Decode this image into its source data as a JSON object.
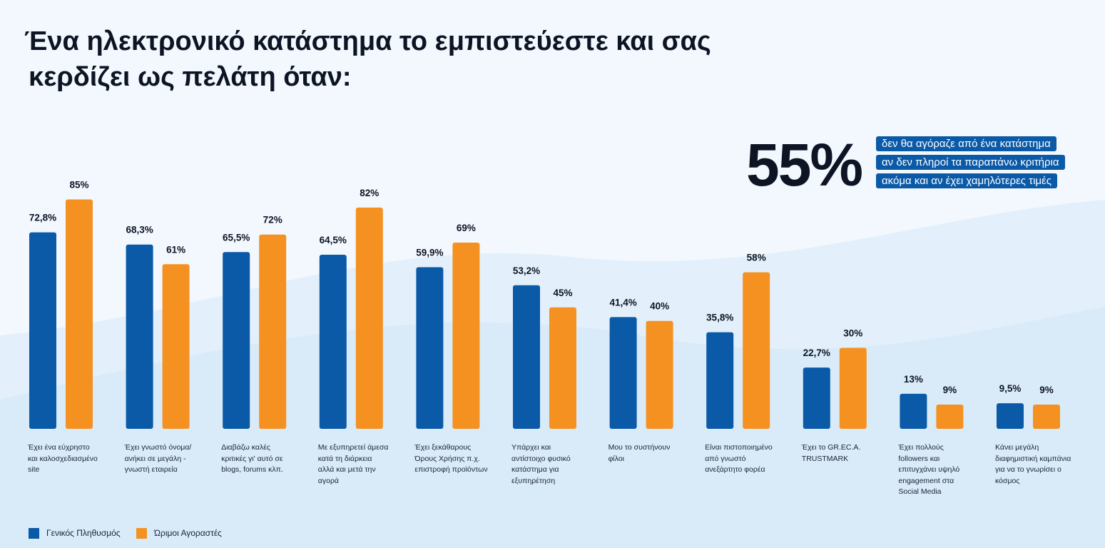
{
  "header": {
    "title_line1": "Ένα ηλεκτρονικό κατάστημα το εμπιστεύεστε και σας",
    "title_line2": "κερδίζει ως πελάτη όταν:"
  },
  "callout": {
    "number": "55%",
    "lines": [
      "δεν θα αγόραζε από ένα κατάστημα",
      "αν δεν πληροί τα παραπάνω κριτήρια",
      "ακόμα και αν έχει χαμηλότερες τιμές"
    ]
  },
  "colors": {
    "series_general": "#0a5aa8",
    "series_mature": "#f59121",
    "text_dark": "#0d1424",
    "background": "#eef6fd"
  },
  "chart_data": {
    "type": "bar",
    "categories": [
      "Έχει ένα εύχρηστο και καλοσχεδιασμένο site",
      "Έχει γνωστό όνομα/ ανήκει σε μεγάλη - γνωστή εταιρεία",
      "Διαβάζω καλές κριτικές γι' αυτό σε blogs, forums κλπ.",
      "Με εξυπηρετεί άμεσα κατά τη διάρκεια αλλά και μετά την αγορά",
      "Έχει ξεκάθαρους Όρους Χρήσης π.χ. επιστροφή προϊόντων",
      "Υπάρχει και αντίστοιχο φυσικό κατάστημα για εξυπηρέτηση",
      "Μου το συστήνουν φίλοι",
      "Είναι πιστοποιημένο από γνωστό ανεξάρτητο φορέα",
      "Έχει το GR.EC.A. TRUSTMARK",
      "Έχει πολλούς followers και επιτυγχάνει υψηλό engagement στα Social Media",
      "Κάνει μεγάλη διαφημιστική καμπάνια για να το γνωρίσει ο κόσμος"
    ],
    "category_lines": [
      [
        "Έχει ένα εύχρηστο",
        "και καλοσχεδιασμένο",
        "site"
      ],
      [
        "Έχει γνωστό όνομα/",
        "ανήκει σε μεγάλη -",
        "γνωστή εταιρεία"
      ],
      [
        "Διαβάζω καλές",
        "κριτικές γι' αυτό σε",
        "blogs, forums κλπ."
      ],
      [
        "Με εξυπηρετεί άμεσα",
        "κατά τη διάρκεια",
        "αλλά και μετά την",
        "αγορά"
      ],
      [
        "Έχει ξεκάθαρους",
        "Όρους Χρήσης π.χ.",
        "επιστροφή προϊόντων"
      ],
      [
        "Υπάρχει και",
        "αντίστοιχο φυσικό",
        "κατάστημα για",
        "εξυπηρέτηση"
      ],
      [
        "Μου το συστήνουν",
        "φίλοι"
      ],
      [
        "Είναι πιστοποιημένο",
        "από γνωστό",
        "ανεξάρτητο φορέα"
      ],
      [
        "Έχει το GR.EC.A.",
        "TRUSTMARK"
      ],
      [
        "Έχει πολλούς",
        "followers και",
        "επιτυγχάνει υψηλό",
        "engagement στα",
        "Social Media"
      ],
      [
        "Κάνει μεγάλη",
        "διαφημιστική καμπάνια",
        "για να το γνωρίσει ο",
        "κόσμος"
      ]
    ],
    "series": [
      {
        "name": "Γενικός Πληθυσμός",
        "values": [
          72.8,
          68.3,
          65.5,
          64.5,
          59.9,
          53.2,
          41.4,
          35.8,
          22.7,
          13,
          9.5
        ],
        "labels": [
          "72,8%",
          "68,3%",
          "65,5%",
          "64,5%",
          "59,9%",
          "53,2%",
          "41,4%",
          "35,8%",
          "22,7%",
          "13%",
          "9,5%"
        ]
      },
      {
        "name": "Ώριμοι Αγοραστές",
        "values": [
          85,
          61,
          72,
          82,
          69,
          45,
          40,
          58,
          30,
          9,
          9
        ],
        "labels": [
          "85%",
          "61%",
          "72%",
          "82%",
          "69%",
          "45%",
          "40%",
          "58%",
          "30%",
          "9%",
          "9%"
        ]
      }
    ],
    "ylim": [
      0,
      100
    ],
    "grid": false,
    "legend_position": "bottom-left"
  }
}
